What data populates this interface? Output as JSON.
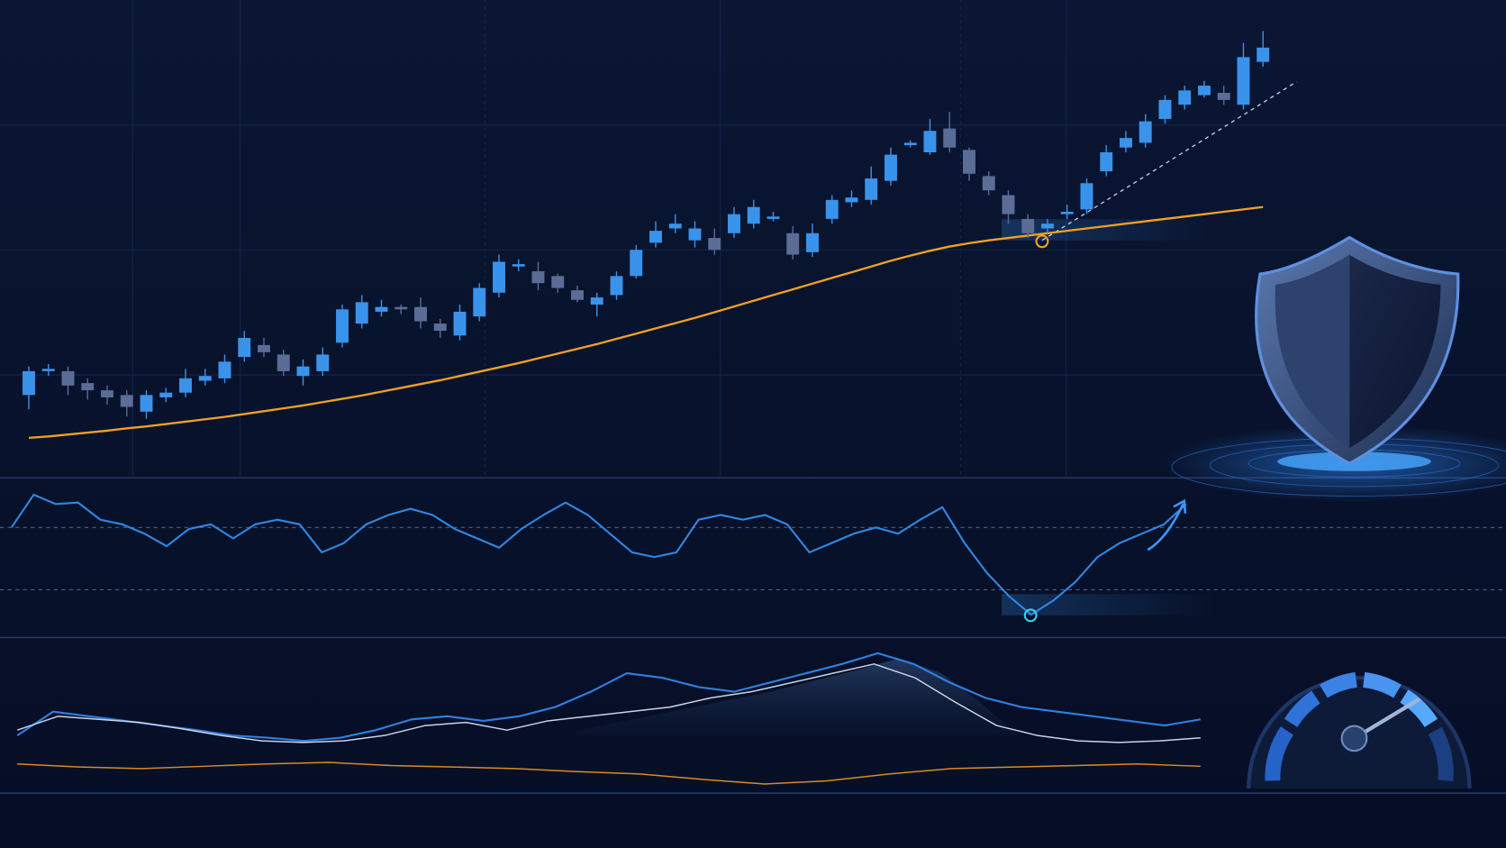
{
  "chart_data": [
    {
      "type": "candlestick",
      "ylim": [
        0,
        100
      ],
      "up_color": "#3a93ea",
      "down_color": "#5b6d96",
      "open": [
        17,
        22,
        22,
        19.5,
        18,
        17,
        13.5,
        16.5,
        17.5,
        20,
        20.5,
        25,
        27.5,
        25.5,
        21,
        22,
        28,
        32,
        34.5,
        35.5,
        35.5,
        32,
        29.5,
        33.5,
        38.5,
        44,
        43,
        42,
        39,
        36,
        38,
        42,
        49,
        52,
        49.5,
        50,
        51,
        53,
        54,
        51,
        47,
        54,
        57.5,
        58,
        62,
        69.5,
        68,
        73,
        68.5,
        63,
        59,
        54,
        52,
        55,
        56,
        64,
        69,
        70,
        75,
        78,
        80,
        80.5,
        78,
        87
      ],
      "close": [
        22,
        22.5,
        19,
        18,
        16.5,
        14.5,
        17,
        17.5,
        20.5,
        21,
        24,
        29,
        26,
        22,
        23,
        25.5,
        35,
        36.5,
        35.5,
        35,
        32.5,
        30.5,
        34.5,
        39.5,
        45,
        44.5,
        40.5,
        39.5,
        37,
        37.5,
        42,
        47.5,
        51.5,
        53,
        52,
        47.5,
        55,
        56.5,
        54.5,
        46.5,
        51,
        58,
        58.5,
        62.5,
        67.5,
        70,
        72.5,
        69,
        63.5,
        60,
        55,
        51,
        53,
        55.5,
        61.5,
        68,
        71,
        74.5,
        79,
        81,
        82,
        79,
        88,
        90
      ],
      "high": [
        23,
        23.5,
        23,
        20.5,
        19,
        18,
        18,
        18.5,
        22.5,
        22.5,
        25.5,
        30.5,
        29,
        26.5,
        24.5,
        27,
        36,
        38,
        37,
        36,
        37.5,
        33,
        36,
        40.5,
        46.5,
        45.5,
        45,
        42.5,
        40,
        38.5,
        43,
        48.5,
        53.5,
        55,
        53.5,
        52,
        56.5,
        58,
        55.5,
        52.5,
        53,
        59,
        60,
        65,
        69,
        70.5,
        75,
        76.5,
        69,
        64,
        60,
        55,
        54,
        57,
        62.5,
        69.5,
        72.5,
        76,
        80,
        82,
        83,
        82,
        91,
        93.5
      ],
      "low": [
        14,
        21,
        17,
        16,
        15,
        12.5,
        12,
        15.5,
        16.5,
        19,
        19.5,
        24,
        25,
        21,
        19,
        21,
        27,
        31,
        33.5,
        34,
        31,
        29,
        28.5,
        32.5,
        37.5,
        43,
        39,
        38.5,
        36.5,
        33.5,
        37,
        41.5,
        48,
        51,
        48,
        46.5,
        50,
        52,
        53.5,
        45.5,
        46,
        53,
        56.5,
        57,
        61,
        69,
        67.5,
        68,
        62,
        59,
        53,
        50,
        51,
        54,
        55,
        63,
        68,
        69,
        74,
        77,
        79.5,
        78,
        77,
        86
      ],
      "ma": {
        "color": "#f0a024",
        "values": [
          8,
          8.3,
          8.7,
          9.1,
          9.5,
          10,
          10.4,
          10.9,
          11.4,
          11.9,
          12.4,
          13,
          13.6,
          14.2,
          14.8,
          15.5,
          16.2,
          16.9,
          17.7,
          18.5,
          19.3,
          20.1,
          21,
          21.9,
          22.8,
          23.7,
          24.7,
          25.7,
          26.7,
          27.7,
          28.8,
          29.9,
          31,
          32.1,
          33.2,
          34.4,
          35.6,
          36.8,
          38,
          39.2,
          40.4,
          41.6,
          42.8,
          44,
          45.2,
          46.3,
          47.3,
          48.2,
          48.9,
          49.5,
          50,
          50.5,
          51,
          51.5,
          52,
          52.5,
          53,
          53.5,
          54,
          54.5,
          55,
          55.5,
          56,
          56.5
        ]
      }
    },
    {
      "type": "line",
      "ylim": [
        0,
        100
      ],
      "levels": [
        30,
        70
      ],
      "series": [
        {
          "color": "#2f86e0",
          "values": [
            70,
            91,
            85,
            86,
            75,
            72,
            66,
            58,
            69,
            72,
            63,
            72,
            75,
            72,
            54,
            60,
            72,
            78,
            82,
            78,
            69,
            63,
            57,
            69,
            78,
            86,
            78,
            66,
            54,
            51,
            54,
            75,
            78,
            75,
            78,
            72,
            54,
            60,
            66,
            70,
            66,
            75,
            83,
            60,
            41,
            26,
            14,
            23,
            35,
            51,
            60,
            66,
            72,
            85
          ]
        }
      ]
    },
    {
      "type": "line",
      "ylim": [
        0,
        100
      ],
      "series": [
        {
          "color": "#2f7fe0",
          "values": [
            37.5,
            53,
            50,
            47,
            44,
            41,
            37.5,
            36,
            34,
            36,
            41,
            48,
            50,
            47,
            50,
            56,
            66,
            78,
            75,
            69,
            66,
            72,
            78,
            84,
            91,
            84,
            72,
            62,
            56,
            53,
            50,
            47,
            44,
            48
          ]
        },
        {
          "color": "#c9d3e6",
          "values": [
            41,
            50,
            48,
            46,
            42,
            37.5,
            34,
            33,
            34,
            37.5,
            44,
            46,
            41,
            47,
            50,
            53,
            56,
            62,
            66,
            72,
            78,
            84,
            75,
            59,
            44,
            37.5,
            34,
            33,
            34,
            36
          ]
        },
        {
          "color": "#d98a22",
          "values": [
            19,
            17,
            16,
            17.5,
            19,
            20,
            18,
            17,
            16,
            14,
            12.5,
            9,
            6,
            8,
            12.5,
            16,
            17,
            18,
            19,
            17.5
          ]
        }
      ]
    }
  ]
}
